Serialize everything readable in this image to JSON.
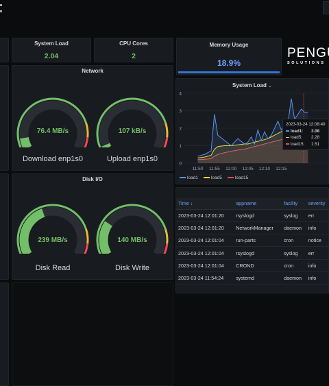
{
  "stats": {
    "system_load": {
      "title": "System Load",
      "value": "2.04"
    },
    "cpu_cores": {
      "title": "CPU Cores",
      "value": "2"
    },
    "memory": {
      "title": "Memory Usage",
      "value": "18.9%",
      "fraction": 0.189
    }
  },
  "brand": {
    "name": "PENGU",
    "sub": "SOLUTIONS"
  },
  "network": {
    "title": "Network",
    "download": {
      "value": "76.4 MB/s",
      "label": "Download enp1s0",
      "fraction": 0.09
    },
    "upload": {
      "value": "107 kB/s",
      "label": "Upload enp1s0",
      "fraction": 0.03
    }
  },
  "disk": {
    "title": "Disk I/O",
    "read": {
      "value": "239 MB/s",
      "label": "Disk Read",
      "fraction": 0.42
    },
    "write": {
      "value": "140 MB/s",
      "label": "Disk Write",
      "fraction": 0.27
    }
  },
  "load_chart": {
    "title": "System Load",
    "tooltip": {
      "time": "2023-03-24 12:08:40",
      "rows": [
        {
          "name": "load1:",
          "value": "3.08",
          "color": "#5794f2"
        },
        {
          "name": "load5:",
          "value": "2.28",
          "color": "#fade2a"
        },
        {
          "name": "load15:",
          "value": "1.51",
          "color": "#f2495c"
        }
      ]
    },
    "legend": [
      {
        "name": "load1",
        "color": "#5794f2"
      },
      {
        "name": "load5",
        "color": "#fade2a"
      },
      {
        "name": "load15",
        "color": "#f2495c"
      }
    ]
  },
  "chart_data": {
    "type": "line",
    "title": "System Load",
    "x_ticks": [
      "11:50",
      "11:55",
      "12:00",
      "12:05",
      "12:10",
      "12:15"
    ],
    "y_ticks": [
      "0",
      "1",
      "2",
      "3",
      "4"
    ],
    "ylim": [
      0,
      4
    ],
    "x_minutes": [
      0,
      2,
      4,
      5,
      6,
      8,
      10,
      12,
      14,
      15,
      16,
      17,
      18,
      19,
      20,
      21,
      22,
      23,
      24,
      25,
      26,
      27,
      28,
      29,
      30,
      31,
      32,
      33
    ],
    "series": [
      {
        "name": "load1",
        "color": "#5794f2",
        "values": [
          0.4,
          0.5,
          0.7,
          2.8,
          1.6,
          1.3,
          1.0,
          1.4,
          1.1,
          1.2,
          1.5,
          1.1,
          1.9,
          1.3,
          1.8,
          1.4,
          1.6,
          2.0,
          2.4,
          1.9,
          2.2,
          2.3,
          3.7,
          2.5,
          2.8,
          3.1,
          2.9,
          2.9
        ]
      },
      {
        "name": "load5",
        "color": "#fade2a",
        "values": [
          0.3,
          0.35,
          0.45,
          0.8,
          0.95,
          1.0,
          1.0,
          1.05,
          1.1,
          1.1,
          1.15,
          1.2,
          1.25,
          1.3,
          1.35,
          1.4,
          1.5,
          1.6,
          1.7,
          1.8,
          1.85,
          1.95,
          2.1,
          2.2,
          2.28,
          2.35,
          2.3,
          2.3
        ]
      },
      {
        "name": "load15",
        "color": "#f2495c",
        "values": [
          0.2,
          0.22,
          0.26,
          0.4,
          0.5,
          0.6,
          0.68,
          0.75,
          0.8,
          0.85,
          0.9,
          0.95,
          1.0,
          1.05,
          1.1,
          1.15,
          1.2,
          1.25,
          1.3,
          1.35,
          1.4,
          1.45,
          1.5,
          1.5,
          1.51,
          1.55,
          1.55,
          1.55
        ]
      }
    ]
  },
  "logs": {
    "columns": [
      "Time ↓",
      "appname",
      "facility",
      "severity"
    ],
    "rows": [
      [
        "2023-03-24 12:01:20",
        "rsyslogd",
        "syslog",
        "err"
      ],
      [
        "2023-03-24 12:01:20",
        "NetworkManager",
        "daemon",
        "info"
      ],
      [
        "2023-03-24 12:01:04",
        "run-parts",
        "cron",
        "notice"
      ],
      [
        "2023-03-24 12:01:04",
        "rsyslogd",
        "syslog",
        "err"
      ],
      [
        "2023-03-24 12:01:04",
        "CROND",
        "cron",
        "info"
      ],
      [
        "2023-03-24 11:54:24",
        "systemd",
        "daemon",
        "info"
      ]
    ]
  }
}
